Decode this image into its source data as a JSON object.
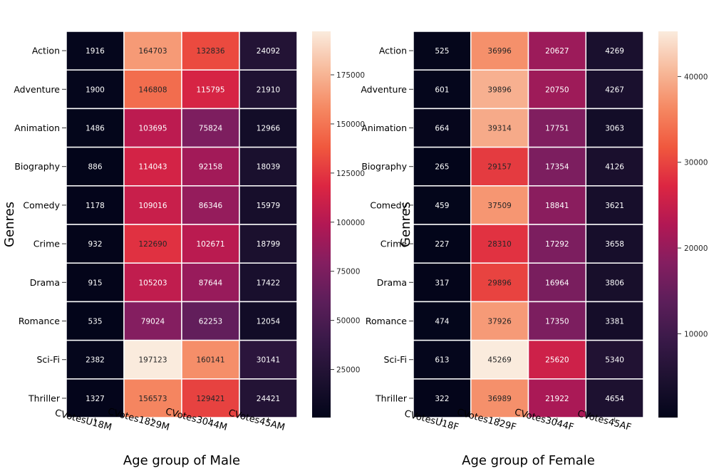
{
  "chart_data": [
    {
      "type": "heatmap",
      "ylabel": "Genres",
      "xlabel": "Age group of Male",
      "rows": [
        "Action",
        "Adventure",
        "Animation",
        "Biography",
        "Comedy",
        "Crime",
        "Drama",
        "Romance",
        "Sci-Fi",
        "Thriller"
      ],
      "columns": [
        "CVotesU18M",
        "CVotes1829M",
        "CVotes3044M",
        "CVotes45AM"
      ],
      "values": [
        [
          1916,
          164703,
          132836,
          24092
        ],
        [
          1900,
          146808,
          115795,
          21910
        ],
        [
          1486,
          103695,
          75824,
          12966
        ],
        [
          886,
          114043,
          92158,
          18039
        ],
        [
          1178,
          109016,
          86346,
          15979
        ],
        [
          932,
          122690,
          102671,
          18799
        ],
        [
          915,
          105203,
          87644,
          17422
        ],
        [
          535,
          79024,
          62253,
          12054
        ],
        [
          2382,
          197123,
          160141,
          30141
        ],
        [
          1327,
          156573,
          129421,
          24421
        ]
      ],
      "colorbar": {
        "colormap": "rocket",
        "range": [
          535,
          197123
        ],
        "ticks": [
          25000,
          50000,
          75000,
          100000,
          125000,
          150000,
          175000
        ],
        "tick_labels": [
          "25000",
          "50000",
          "75000",
          "100000",
          "125000",
          "150000",
          "175000"
        ]
      }
    },
    {
      "type": "heatmap",
      "ylabel": "Genres",
      "xlabel": "Age group of Female",
      "rows": [
        "Action",
        "Adventure",
        "Animation",
        "Biography",
        "Comedy",
        "Crime",
        "Drama",
        "Romance",
        "Sci-Fi",
        "Thriller"
      ],
      "columns": [
        "CVotesU18F",
        "CVotes1829F",
        "CVotes3044F",
        "CVotes45AF"
      ],
      "values": [
        [
          525,
          36996,
          20627,
          4269
        ],
        [
          601,
          39896,
          20750,
          4267
        ],
        [
          664,
          39314,
          17751,
          3063
        ],
        [
          265,
          29157,
          17354,
          4126
        ],
        [
          459,
          37509,
          18841,
          3621
        ],
        [
          227,
          28310,
          17292,
          3658
        ],
        [
          317,
          29896,
          16964,
          3806
        ],
        [
          474,
          37926,
          17350,
          3381
        ],
        [
          613,
          45269,
          25620,
          5340
        ],
        [
          322,
          36989,
          21922,
          4654
        ]
      ],
      "colorbar": {
        "colormap": "rocket",
        "range": [
          227,
          45269
        ],
        "ticks": [
          10000,
          20000,
          30000,
          40000
        ],
        "tick_labels": [
          "10000",
          "20000",
          "30000",
          "40000"
        ]
      }
    }
  ]
}
